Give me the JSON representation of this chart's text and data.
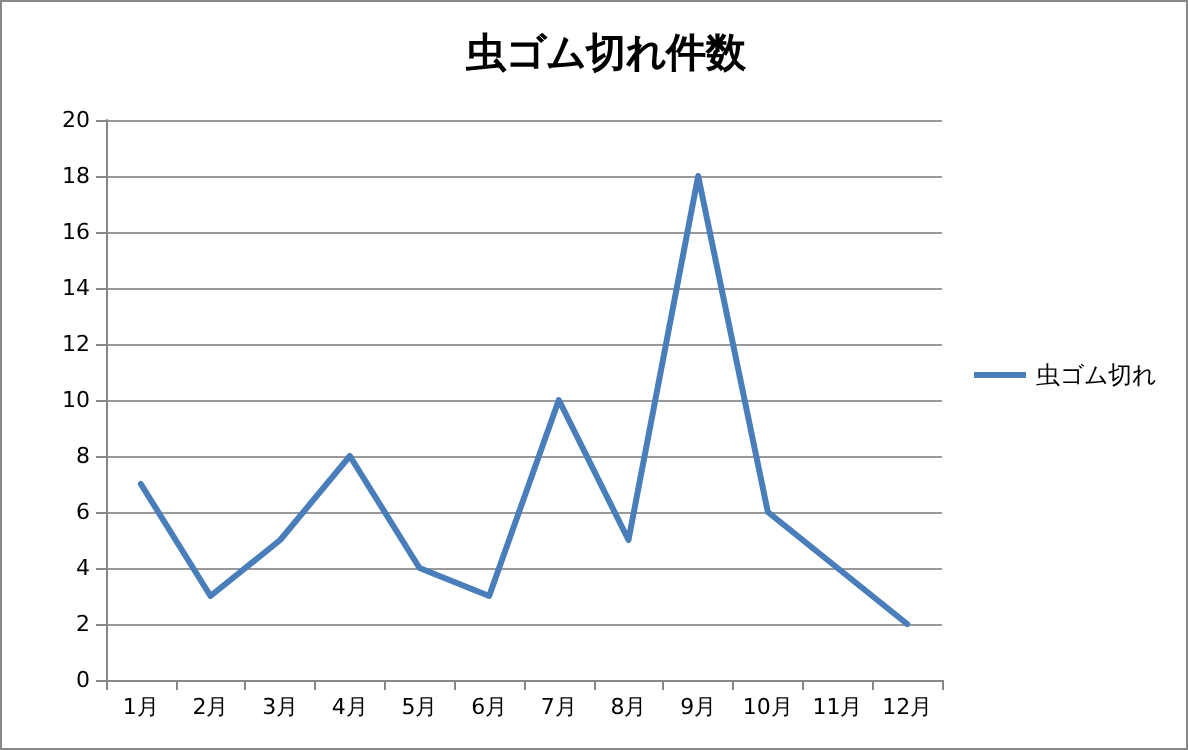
{
  "chart_data": {
    "type": "line",
    "title": "虫ゴム切れ件数",
    "categories": [
      "1月",
      "2月",
      "3月",
      "4月",
      "5月",
      "6月",
      "7月",
      "8月",
      "9月",
      "10月",
      "11月",
      "12月"
    ],
    "series": [
      {
        "name": "虫ゴム切れ",
        "color": "#4a7ebb",
        "values": [
          7,
          3,
          5,
          8,
          4,
          3,
          10,
          5,
          18,
          6,
          4,
          2
        ]
      }
    ],
    "ylim": [
      0,
      20
    ],
    "yticks": [
      0,
      2,
      4,
      6,
      8,
      10,
      12,
      14,
      16,
      18,
      20
    ],
    "grid": "y",
    "legend": "right",
    "marker": "none",
    "line_style": "solid"
  }
}
